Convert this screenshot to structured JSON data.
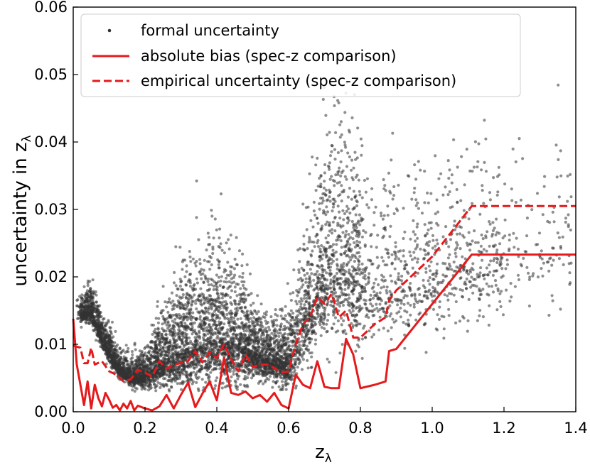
{
  "chart_data": {
    "type": "scatter",
    "xlabel": "z",
    "xlabel_sub": "λ",
    "ylabel": "uncertainty in z",
    "ylabel_sub": "λ",
    "xlim": [
      0.0,
      1.4
    ],
    "ylim": [
      0.0,
      0.06
    ],
    "xticks": [
      0.0,
      0.2,
      0.4,
      0.6,
      0.8,
      1.0,
      1.2,
      1.4
    ],
    "xtick_labels": [
      "0.0",
      "0.2",
      "0.4",
      "0.6",
      "0.8",
      "1.0",
      "1.2",
      "1.4"
    ],
    "yticks": [
      0.0,
      0.01,
      0.02,
      0.03,
      0.04,
      0.05,
      0.06
    ],
    "ytick_labels": [
      "0.00",
      "0.01",
      "0.02",
      "0.03",
      "0.04",
      "0.05",
      "0.06"
    ],
    "grid": false,
    "legend_position": "top-left",
    "colors": {
      "scatter": "#333333",
      "bias": "#e41a1c",
      "empirical": "#e41a1c"
    },
    "series": [
      {
        "name": "formal uncertainty",
        "kind": "scatter",
        "trend": [
          [
            0.02,
            0.0145,
            0.0015
          ],
          [
            0.05,
            0.015,
            0.002
          ],
          [
            0.08,
            0.011,
            0.0018
          ],
          [
            0.12,
            0.007,
            0.0015
          ],
          [
            0.16,
            0.005,
            0.0012
          ],
          [
            0.2,
            0.0055,
            0.002
          ],
          [
            0.25,
            0.0075,
            0.004
          ],
          [
            0.3,
            0.009,
            0.006
          ],
          [
            0.35,
            0.01,
            0.0065
          ],
          [
            0.4,
            0.011,
            0.007
          ],
          [
            0.45,
            0.01,
            0.006
          ],
          [
            0.5,
            0.009,
            0.004
          ],
          [
            0.55,
            0.0075,
            0.003
          ],
          [
            0.6,
            0.0075,
            0.004
          ],
          [
            0.65,
            0.014,
            0.007
          ],
          [
            0.7,
            0.02,
            0.01
          ],
          [
            0.75,
            0.022,
            0.012
          ],
          [
            0.8,
            0.019,
            0.01
          ],
          [
            0.85,
            0.018,
            0.008
          ],
          [
            0.9,
            0.018,
            0.008
          ],
          [
            1.0,
            0.02,
            0.008
          ],
          [
            1.1,
            0.022,
            0.008
          ],
          [
            1.2,
            0.023,
            0.009
          ],
          [
            1.35,
            0.024,
            0.009
          ]
        ]
      },
      {
        "name": "absolute bias (spec-z comparison)",
        "kind": "line",
        "style": "solid",
        "x": [
          0.0,
          0.01,
          0.02,
          0.03,
          0.04,
          0.05,
          0.06,
          0.07,
          0.08,
          0.09,
          0.1,
          0.11,
          0.12,
          0.13,
          0.14,
          0.15,
          0.16,
          0.17,
          0.18,
          0.2,
          0.22,
          0.24,
          0.26,
          0.28,
          0.3,
          0.32,
          0.34,
          0.36,
          0.38,
          0.4,
          0.42,
          0.44,
          0.46,
          0.48,
          0.5,
          0.52,
          0.54,
          0.56,
          0.58,
          0.6,
          0.62,
          0.64,
          0.66,
          0.68,
          0.7,
          0.72,
          0.74,
          0.76,
          0.78,
          0.8,
          0.84,
          0.87,
          0.88,
          0.9,
          1.11,
          1.4
        ],
        "y": [
          0.0138,
          0.007,
          0.004,
          0.001,
          0.0045,
          0.0005,
          0.004,
          0.002,
          0.0008,
          0.0028,
          0.0018,
          0.0006,
          0.001,
          0.0002,
          0.0012,
          0.0005,
          0.0016,
          0.0002,
          0.0009,
          0.0005,
          0.0002,
          0.0008,
          0.0025,
          0.0005,
          0.0025,
          0.0043,
          0.0007,
          0.0027,
          0.0045,
          0.0017,
          0.008,
          0.0028,
          0.0025,
          0.003,
          0.002,
          0.0025,
          0.0015,
          0.0028,
          0.001,
          0.0005,
          0.0055,
          0.004,
          0.0035,
          0.0075,
          0.0037,
          0.0035,
          0.0035,
          0.0108,
          0.0085,
          0.0035,
          0.004,
          0.0045,
          0.009,
          0.0093,
          0.0233,
          0.0233
        ]
      },
      {
        "name": "empirical uncertainty (spec-z comparison)",
        "kind": "line",
        "style": "dashed",
        "x": [
          0.0,
          0.02,
          0.03,
          0.04,
          0.05,
          0.06,
          0.08,
          0.1,
          0.12,
          0.14,
          0.16,
          0.18,
          0.2,
          0.22,
          0.24,
          0.26,
          0.28,
          0.3,
          0.32,
          0.34,
          0.36,
          0.38,
          0.4,
          0.42,
          0.44,
          0.46,
          0.48,
          0.5,
          0.52,
          0.54,
          0.56,
          0.58,
          0.6,
          0.62,
          0.64,
          0.66,
          0.68,
          0.7,
          0.72,
          0.74,
          0.76,
          0.78,
          0.8,
          0.82,
          0.84,
          0.87,
          0.88,
          0.9,
          1.0,
          1.11,
          1.4
        ],
        "y": [
          0.0098,
          0.0095,
          0.0072,
          0.0072,
          0.0095,
          0.007,
          0.0075,
          0.006,
          0.0055,
          0.0045,
          0.0048,
          0.0062,
          0.0058,
          0.0052,
          0.0075,
          0.0064,
          0.007,
          0.0072,
          0.0075,
          0.009,
          0.0073,
          0.0088,
          0.008,
          0.01,
          0.0078,
          0.006,
          0.0085,
          0.0066,
          0.007,
          0.007,
          0.0065,
          0.0058,
          0.006,
          0.01,
          0.013,
          0.014,
          0.017,
          0.016,
          0.0175,
          0.014,
          0.015,
          0.011,
          0.011,
          0.012,
          0.013,
          0.014,
          0.0165,
          0.018,
          0.023,
          0.0305,
          0.0305
        ]
      }
    ]
  }
}
